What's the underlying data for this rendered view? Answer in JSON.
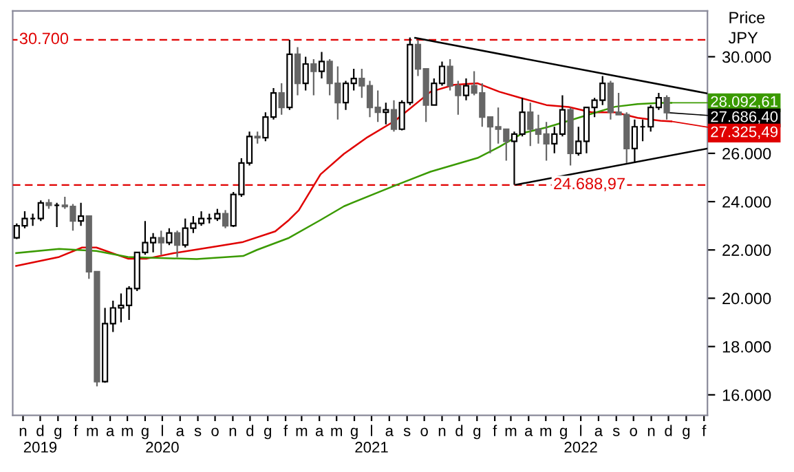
{
  "chart_data": {
    "type": "candlestick",
    "title": "Price",
    "ylabel": "JPY",
    "x": [
      "2019-10-21",
      "2019-11-04",
      "2019-11-18",
      "2019-12-02",
      "2019-12-16",
      "2019-12-30",
      "2020-01-13",
      "2020-01-27",
      "2020-02-10",
      "2020-02-24",
      "2020-03-09",
      "2020-03-23",
      "2020-04-06",
      "2020-04-20",
      "2020-05-04",
      "2020-05-18",
      "2020-06-01",
      "2020-06-15",
      "2020-06-29",
      "2020-07-13",
      "2020-07-27",
      "2020-08-10",
      "2020-08-24",
      "2020-09-07",
      "2020-09-21",
      "2020-10-05",
      "2020-10-19",
      "2020-11-02",
      "2020-11-16",
      "2020-11-30",
      "2020-12-14",
      "2020-12-28",
      "2021-01-11",
      "2021-01-25",
      "2021-02-08",
      "2021-02-22",
      "2021-03-08",
      "2021-03-22",
      "2021-04-05",
      "2021-04-19",
      "2021-05-03",
      "2021-05-17",
      "2021-05-31",
      "2021-06-14",
      "2021-06-28",
      "2021-07-12",
      "2021-07-26",
      "2021-08-09",
      "2021-08-23",
      "2021-09-06",
      "2021-09-20",
      "2021-10-04",
      "2021-10-18",
      "2021-11-01",
      "2021-11-15",
      "2021-11-29",
      "2021-12-13",
      "2021-12-27",
      "2022-01-10",
      "2022-01-24",
      "2022-02-07",
      "2022-02-21",
      "2022-03-07",
      "2022-03-21",
      "2022-04-04",
      "2022-04-18",
      "2022-05-02",
      "2022-05-16",
      "2022-05-30",
      "2022-06-13",
      "2022-06-27",
      "2022-07-11",
      "2022-07-25",
      "2022-08-08",
      "2022-08-22",
      "2022-09-05",
      "2022-09-19",
      "2022-10-03",
      "2022-10-17",
      "2022-10-31",
      "2022-11-14",
      "2022-11-28"
    ],
    "ohlc": [
      [
        22500,
        23100,
        22450,
        23000
      ],
      [
        23000,
        23600,
        22900,
        23300
      ],
      [
        23300,
        23500,
        23000,
        23300
      ],
      [
        23300,
        24050,
        23200,
        23950
      ],
      [
        23950,
        24100,
        23700,
        23850
      ],
      [
        23850,
        23950,
        22950,
        23850
      ],
      [
        23850,
        24200,
        23700,
        23800
      ],
      [
        23800,
        23900,
        22800,
        23200
      ],
      [
        23200,
        23950,
        23000,
        23400
      ],
      [
        23400,
        23400,
        20800,
        21100
      ],
      [
        21100,
        21100,
        16350,
        16550
      ],
      [
        16550,
        19600,
        16500,
        18950
      ],
      [
        18950,
        19900,
        18600,
        19600
      ],
      [
        19600,
        20200,
        19000,
        19700
      ],
      [
        19700,
        20500,
        19100,
        20400
      ],
      [
        20400,
        21900,
        20300,
        21900
      ],
      [
        21900,
        23200,
        21800,
        22300
      ],
      [
        22300,
        22700,
        21900,
        22500
      ],
      [
        22500,
        22800,
        21800,
        22300
      ],
      [
        22300,
        22900,
        22200,
        22700
      ],
      [
        22700,
        22800,
        21700,
        22200
      ],
      [
        22200,
        23300,
        22100,
        22900
      ],
      [
        22900,
        23400,
        22700,
        23100
      ],
      [
        23100,
        23600,
        23000,
        23300
      ],
      [
        23300,
        23500,
        23100,
        23300
      ],
      [
        23300,
        23700,
        23200,
        23500
      ],
      [
        23500,
        23650,
        22900,
        23000
      ],
      [
        23000,
        24400,
        22950,
        24300
      ],
      [
        24300,
        25800,
        24200,
        25600
      ],
      [
        25600,
        26900,
        25500,
        26700
      ],
      [
        26700,
        26900,
        26400,
        26650
      ],
      [
        26650,
        27700,
        26500,
        27500
      ],
      [
        27500,
        28700,
        27400,
        28500
      ],
      [
        28500,
        28900,
        27600,
        27900
      ],
      [
        27900,
        30700,
        27800,
        30100
      ],
      [
        30100,
        30400,
        28400,
        28900
      ],
      [
        28900,
        30000,
        28600,
        29700
      ],
      [
        29700,
        29900,
        28400,
        29400
      ],
      [
        29400,
        30200,
        29100,
        29800
      ],
      [
        29800,
        29900,
        28400,
        28900
      ],
      [
        28900,
        29600,
        27400,
        28100
      ],
      [
        28100,
        29000,
        27800,
        28900
      ],
      [
        28900,
        29500,
        28600,
        29100
      ],
      [
        29100,
        29500,
        28300,
        28800
      ],
      [
        28800,
        29000,
        27500,
        27900
      ],
      [
        27900,
        28600,
        27300,
        27700
      ],
      [
        27700,
        28100,
        27200,
        27800
      ],
      [
        27800,
        28200,
        26900,
        27000
      ],
      [
        27000,
        28200,
        26950,
        28100
      ],
      [
        28100,
        30800,
        28000,
        30500
      ],
      [
        30500,
        30700,
        29200,
        29500
      ],
      [
        29500,
        29500,
        27300,
        28000
      ],
      [
        28000,
        29100,
        28000,
        28900
      ],
      [
        28900,
        29800,
        28800,
        29600
      ],
      [
        29600,
        29900,
        28600,
        28800
      ],
      [
        28800,
        29000,
        27600,
        28400
      ],
      [
        28400,
        29100,
        28200,
        28800
      ],
      [
        28800,
        29400,
        28400,
        28500
      ],
      [
        28500,
        28900,
        27100,
        27500
      ],
      [
        27500,
        27500,
        26000,
        27100
      ],
      [
        27100,
        27900,
        26400,
        27000
      ],
      [
        27000,
        27000,
        25700,
        26500
      ],
      [
        26500,
        26900,
        24700,
        26800
      ],
      [
        26800,
        28300,
        26700,
        27700
      ],
      [
        27700,
        28100,
        26300,
        27000
      ],
      [
        27000,
        27600,
        26400,
        26800
      ],
      [
        26800,
        27300,
        25700,
        26400
      ],
      [
        26400,
        27100,
        26000,
        26800
      ],
      [
        26800,
        28400,
        26700,
        27800
      ],
      [
        27800,
        27900,
        25500,
        26000
      ],
      [
        26000,
        27100,
        25900,
        26500
      ],
      [
        26500,
        27900,
        26000,
        27900
      ],
      [
        27900,
        28300,
        27500,
        28200
      ],
      [
        28200,
        29200,
        28000,
        28900
      ],
      [
        28900,
        29000,
        27400,
        27700
      ],
      [
        27700,
        28500,
        27600,
        27600
      ],
      [
        27600,
        27700,
        25600,
        26200
      ],
      [
        26200,
        27400,
        25600,
        27100
      ],
      [
        27100,
        27400,
        26500,
        27100
      ],
      [
        27100,
        28000,
        26900,
        27900
      ],
      [
        27900,
        28500,
        27800,
        28300
      ],
      [
        28300,
        28400,
        27400,
        27686.4
      ]
    ],
    "series": [
      {
        "type": "line",
        "color": "#e00000",
        "x": [
          "2019-10-20",
          "2020-01-03",
          "2020-02-12",
          "2020-03-08",
          "2020-05-02",
          "2020-06-04",
          "2020-07-22",
          "2020-10-02",
          "2020-11-19",
          "2021-01-14",
          "2021-02-07",
          "2021-02-24",
          "2021-04-03",
          "2021-05-14",
          "2021-06-24",
          "2021-08-11",
          "2021-10-12",
          "2021-11-22",
          "2022-01-02",
          "2022-02-09",
          "2022-03-22",
          "2022-05-02",
          "2022-06-10",
          "2022-07-20",
          "2022-08-30",
          "2022-10-08",
          "2022-11-17",
          "2022-12-06"
        ],
        "values": [
          21340,
          21710,
          22100,
          22100,
          21640,
          21640,
          21870,
          22140,
          22330,
          22770,
          23240,
          23640,
          25130,
          25980,
          26670,
          27350,
          28550,
          28840,
          28900,
          28550,
          28270,
          28000,
          27920,
          27700,
          27700,
          27470,
          27350,
          27325.49
        ],
        "value_labels": [
          null,
          null,
          null,
          null,
          null,
          null,
          null,
          null,
          null,
          null,
          null,
          null,
          null,
          null,
          null,
          null,
          null,
          null,
          null,
          null,
          null,
          null,
          null,
          null,
          null,
          null,
          null,
          "27.325,49"
        ]
      },
      {
        "type": "line",
        "color": "#3a9a00",
        "x": [
          "2019-10-20",
          "2020-01-03",
          "2020-03-08",
          "2020-05-02",
          "2020-08-30",
          "2020-11-19",
          "2020-12-13",
          "2021-02-07",
          "2021-04-03",
          "2021-05-14",
          "2021-08-11",
          "2021-10-12",
          "2022-01-02",
          "2022-02-09",
          "2022-03-22",
          "2022-05-02",
          "2022-06-10",
          "2022-07-20",
          "2022-08-30",
          "2022-10-08",
          "2022-11-17",
          "2022-12-06"
        ],
        "values": [
          21870,
          22040,
          21960,
          21710,
          21620,
          21750,
          22000,
          22500,
          23240,
          23810,
          24670,
          25240,
          25810,
          26270,
          26840,
          27070,
          27350,
          27640,
          27930,
          28040,
          28090,
          28092.61
        ],
        "value_labels": [
          null,
          null,
          null,
          null,
          null,
          null,
          null,
          null,
          null,
          null,
          null,
          null,
          null,
          null,
          null,
          null,
          null,
          null,
          null,
          null,
          null,
          "28.092,61"
        ]
      },
      {
        "type": "line",
        "color": "#000000",
        "x": [
          "2021-09-15",
          "2023-02-07"
        ],
        "values": [
          30780,
          28480
        ]
      },
      {
        "type": "line",
        "color": "#000000",
        "x": [
          "2022-03-10",
          "2023-02-07"
        ],
        "values": [
          24700,
          26200
        ]
      }
    ],
    "annotations": [
      {
        "text": "27.686,40",
        "x": "2022-11-28",
        "y": 27686.4
      }
    ],
    "ref_lines": [
      {
        "axis": "y",
        "value": 30700,
        "label": "30.700",
        "color": "#e00000",
        "line_style": "dashed"
      },
      {
        "axis": "y",
        "value": 24688.97,
        "label": "24.688,97",
        "color": "#e00000",
        "line_style": "dashed"
      }
    ],
    "xlim": [
      "2019-10-14",
      "2023-02-07"
    ],
    "xticks": [
      {
        "value": "2019-11-01",
        "label": "n"
      },
      {
        "value": "2019-12-01",
        "label": "d\n2019"
      },
      {
        "value": "2020-01-01",
        "label": "g"
      },
      {
        "value": "2020-02-01",
        "label": "f"
      },
      {
        "value": "2020-03-01",
        "label": "m"
      },
      {
        "value": "2020-04-01",
        "label": "a"
      },
      {
        "value": "2020-05-01",
        "label": "m"
      },
      {
        "value": "2020-06-01",
        "label": "g"
      },
      {
        "value": "2020-07-01",
        "label": "l\n2020"
      },
      {
        "value": "2020-08-01",
        "label": "a"
      },
      {
        "value": "2020-09-01",
        "label": "s"
      },
      {
        "value": "2020-10-01",
        "label": "o"
      },
      {
        "value": "2020-11-01",
        "label": "n"
      },
      {
        "value": "2020-12-01",
        "label": "d"
      },
      {
        "value": "2021-01-01",
        "label": "g"
      },
      {
        "value": "2021-02-01",
        "label": "f"
      },
      {
        "value": "2021-03-01",
        "label": "m"
      },
      {
        "value": "2021-04-01",
        "label": "a"
      },
      {
        "value": "2021-05-01",
        "label": "m"
      },
      {
        "value": "2021-06-01",
        "label": "g"
      },
      {
        "value": "2021-07-01",
        "label": "l\n2021"
      },
      {
        "value": "2021-08-01",
        "label": "a"
      },
      {
        "value": "2021-09-01",
        "label": "s"
      },
      {
        "value": "2021-10-01",
        "label": "o"
      },
      {
        "value": "2021-11-01",
        "label": "n"
      },
      {
        "value": "2021-12-01",
        "label": "d"
      },
      {
        "value": "2022-01-01",
        "label": "g"
      },
      {
        "value": "2022-02-01",
        "label": "f"
      },
      {
        "value": "2022-03-01",
        "label": "m"
      },
      {
        "value": "2022-04-01",
        "label": "a"
      },
      {
        "value": "2022-05-01",
        "label": "m"
      },
      {
        "value": "2022-06-01",
        "label": "g"
      },
      {
        "value": "2022-07-01",
        "label": "l\n2022"
      },
      {
        "value": "2022-08-01",
        "label": "a"
      },
      {
        "value": "2022-09-01",
        "label": "s"
      },
      {
        "value": "2022-10-01",
        "label": "o"
      },
      {
        "value": "2022-11-01",
        "label": "n"
      },
      {
        "value": "2022-12-01",
        "label": "d"
      },
      {
        "value": "2023-01-01",
        "label": "g"
      },
      {
        "value": "2023-02-01",
        "label": "f"
      }
    ],
    "ylim": [
      15150,
      31900
    ],
    "yticks": [
      {
        "value": 16000,
        "label": "16.000"
      },
      {
        "value": 18000,
        "label": "18.000"
      },
      {
        "value": 20000,
        "label": "20.000"
      },
      {
        "value": 22000,
        "label": "22.000"
      },
      {
        "value": 24000,
        "label": "24.000"
      },
      {
        "value": 26000,
        "label": "26.000"
      },
      {
        "value": 28000,
        "label": null
      },
      {
        "value": 30000,
        "label": "30.000"
      }
    ],
    "grid": false,
    "legend": false
  }
}
